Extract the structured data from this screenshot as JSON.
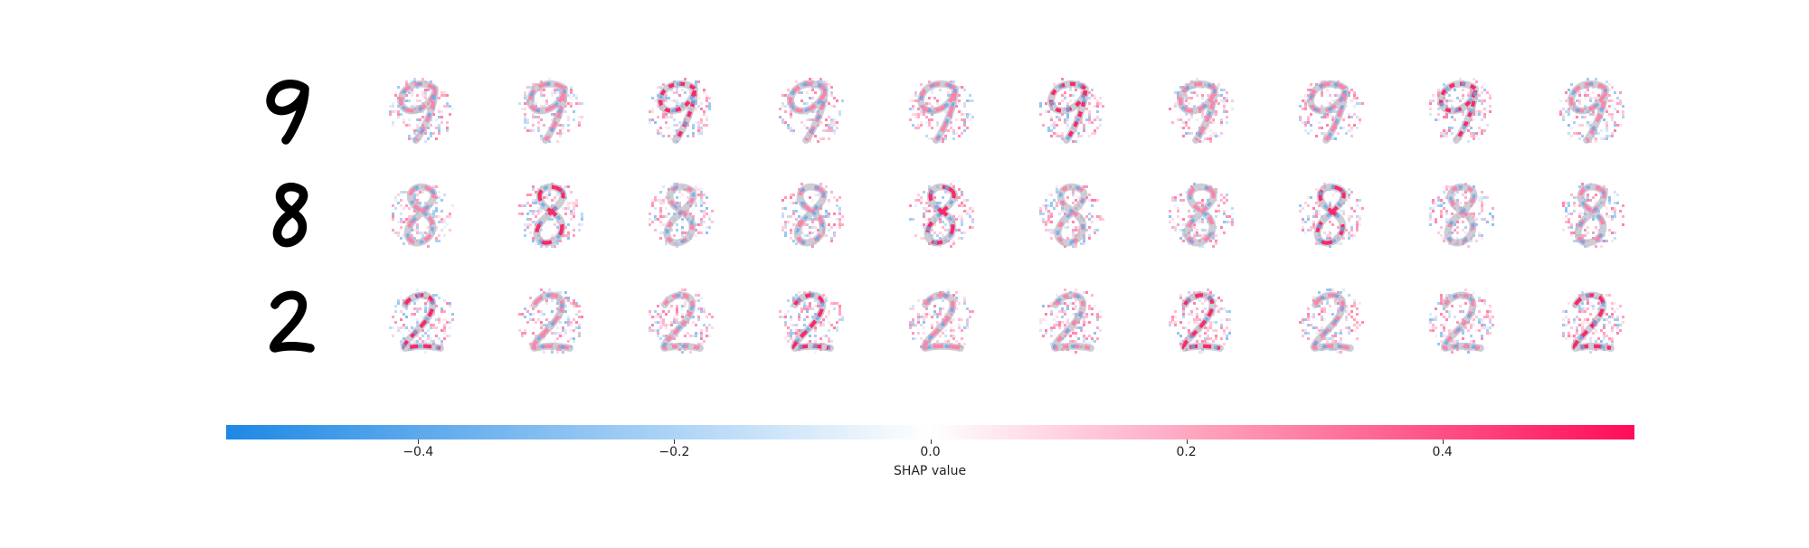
{
  "chart_data": {
    "type": "heatmap",
    "title": "",
    "rows": [
      {
        "digit": "9"
      },
      {
        "digit": "8"
      },
      {
        "digit": "2"
      }
    ],
    "explanation_columns": 10,
    "colorbar": {
      "label": "SHAP value",
      "range": [
        -0.55,
        0.55
      ],
      "ticks": [
        -0.4,
        -0.2,
        0.0,
        0.2,
        0.4
      ],
      "tick_labels": [
        "−0.4",
        "−0.2",
        "0.0",
        "0.2",
        "0.4"
      ],
      "negative_color": "#1E88E5",
      "zero_color": "#FFFFFF",
      "positive_color": "#FF0D57"
    }
  }
}
